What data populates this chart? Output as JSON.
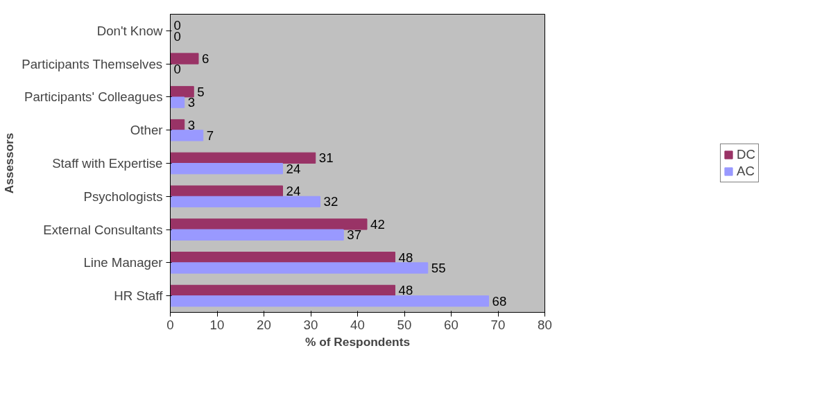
{
  "chart_data": {
    "type": "bar",
    "orientation": "horizontal",
    "xlabel": "% of Respondents",
    "ylabel": "Assessors",
    "categories": [
      "Don't Know",
      "Participants Themselves",
      "Participants' Colleagues",
      "Other",
      "Staff with Expertise",
      "Psychologists",
      "External Consultants",
      "Line Manager",
      "HR Staff"
    ],
    "series": [
      {
        "name": "DC",
        "color": "#993366",
        "values": [
          0,
          6,
          5,
          3,
          31,
          24,
          42,
          48,
          48
        ]
      },
      {
        "name": "AC",
        "color": "#9999ff",
        "values": [
          0,
          0,
          3,
          7,
          24,
          32,
          37,
          55,
          68
        ]
      }
    ],
    "xlim": [
      0,
      80
    ],
    "xticks": [
      0,
      10,
      20,
      30,
      40,
      50,
      60,
      70,
      80
    ],
    "data_labels": true,
    "legend": "right",
    "grid": false
  }
}
